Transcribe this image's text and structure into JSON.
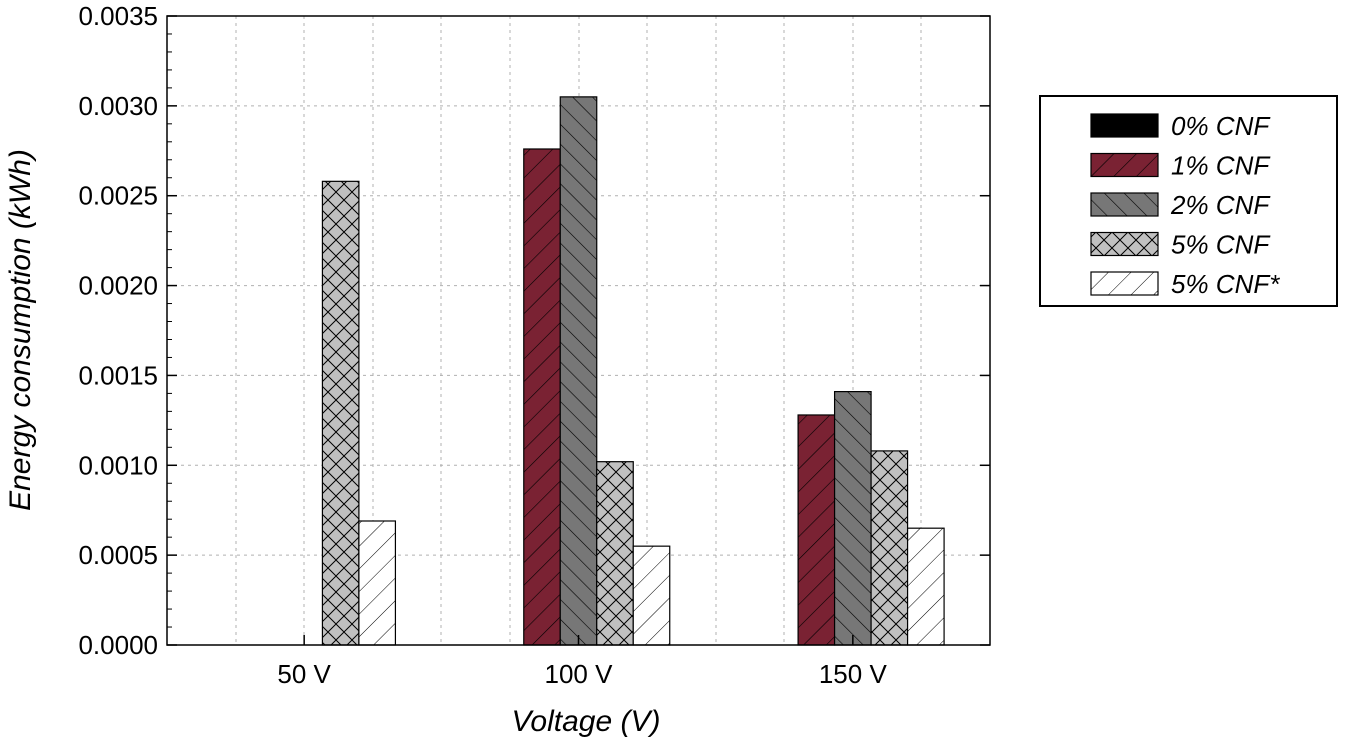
{
  "chart_data": {
    "type": "bar",
    "categories": [
      "50 V",
      "100 V",
      "150 V"
    ],
    "xlabel": "Voltage (V)",
    "ylabel": "Energy consumption (kWh)",
    "ylim": [
      0,
      0.0035
    ],
    "yticks": [
      "0.0000",
      "0.0005",
      "0.0010",
      "0.0015",
      "0.0020",
      "0.0025",
      "0.0030",
      "0.0035"
    ],
    "grid": true,
    "legend_position": "right",
    "series": [
      {
        "name": "0% CNF",
        "values": [
          0,
          0,
          0
        ],
        "color": "#000000",
        "pattern": "solid"
      },
      {
        "name": "1% CNF",
        "values": [
          0,
          0.00276,
          0.00128
        ],
        "color": "#7a2233",
        "pattern": "forward-diagonal"
      },
      {
        "name": "2% CNF",
        "values": [
          0,
          0.00305,
          0.00141
        ],
        "color": "#777777",
        "pattern": "backward-diagonal"
      },
      {
        "name": "5% CNF",
        "values": [
          0.00258,
          0.00102,
          0.00108
        ],
        "color": "#c0c0c0",
        "pattern": "crosshatch"
      },
      {
        "name": "5% CNF*",
        "values": [
          0.00069,
          0.00055,
          0.00065
        ],
        "color": "#ffffff",
        "pattern": "forward-diagonal"
      }
    ]
  }
}
